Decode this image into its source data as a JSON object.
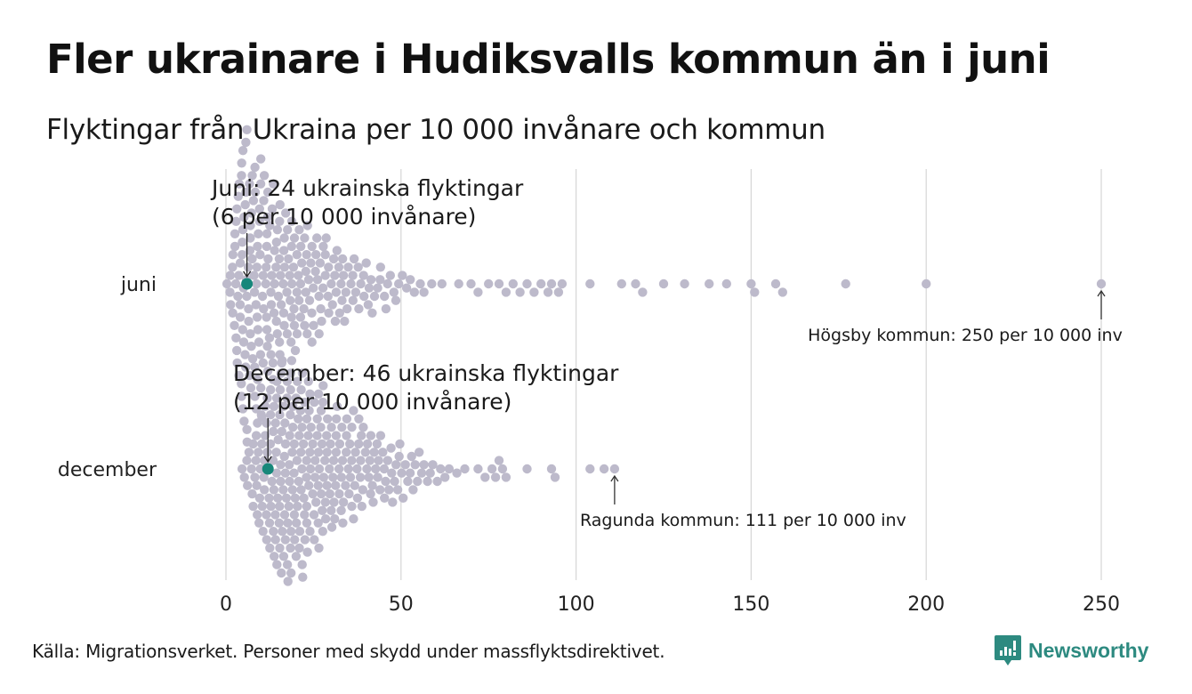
{
  "header": {
    "title": "Fler ukrainare i Hudiksvalls kommun än i juni",
    "subtitle": "Flyktingar från Ukraina per 10 000 invånare och kommun"
  },
  "footer": {
    "source": "Källa: Migrationsverket. Personer med skydd under massflyktsdirektivet.",
    "brand": "Newsworthy"
  },
  "colors": {
    "dot": "#bdbacb",
    "highlight": "#17877a",
    "grid": "#d6d6d6",
    "brand": "#2d8a80"
  },
  "chart_data": {
    "type": "scatter",
    "subtype": "beeswarm",
    "title": "Fler ukrainare i Hudiksvalls kommun än i juni",
    "subtitle": "Flyktingar från Ukraina per 10 000 invånare och kommun",
    "xlabel": "",
    "ylabel": "",
    "xlim": [
      0,
      250
    ],
    "x_ticks": [
      0,
      50,
      100,
      150,
      200,
      250
    ],
    "grid": true,
    "rows": [
      {
        "label": "juni",
        "highlight": {
          "name": "Hudiksvall",
          "value": 6,
          "count": 24
        },
        "annotation": [
          "Juni: 24 ukrainska flyktingar",
          "(6 per 10 000 invånare)"
        ],
        "max_label": "Högsby kommun: 250 per 10 000 inv",
        "max_value": 250,
        "tail_values": [
          66.5,
          70,
          72,
          75,
          78,
          80,
          82,
          84,
          86,
          88,
          90,
          92,
          93,
          95,
          96,
          104,
          113,
          117,
          119,
          125,
          131,
          138,
          143,
          150,
          151,
          157,
          159,
          177,
          200,
          250
        ],
        "bulk": {
          "min": 0,
          "mode": 8,
          "max": 66,
          "count": 250
        }
      },
      {
        "label": "december",
        "highlight": {
          "name": "Hudiksvall",
          "value": 12,
          "count": 46
        },
        "annotation": [
          "December: 46 ukrainska flyktingar",
          "(12 per 10 000 invånare)"
        ],
        "max_label": "Ragunda kommun: 111 per 10 000 inv",
        "max_value": 111,
        "tail_values": [
          72,
          74,
          76,
          77,
          78,
          79,
          80,
          86,
          93,
          94,
          104,
          108,
          111
        ],
        "bulk": {
          "min": 4,
          "mode": 25,
          "max": 72,
          "count": 277
        }
      }
    ]
  }
}
